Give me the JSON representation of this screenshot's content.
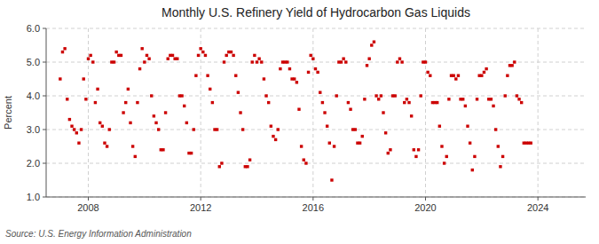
{
  "chart_data": {
    "type": "scatter",
    "title": "Monthly U.S. Refinery Yield of Hydrocarbon Gas Liquids",
    "y_label": "Percent",
    "annotations": [
      "Source: U.S. Energy Information Administration"
    ],
    "color": "#cc0000",
    "marker": "square",
    "grid": true,
    "xlim": [
      2006.5,
      2025.7
    ],
    "ylim": [
      1.0,
      6.0
    ],
    "xticks": [
      2008,
      2012,
      2016,
      2020,
      2024
    ],
    "yticks": [
      {
        "value": 1.0,
        "label": "1.0"
      },
      {
        "value": 2.0,
        "label": "2.0"
      },
      {
        "value": 3.0,
        "label": "3.0"
      },
      {
        "value": 4.0,
        "label": "4.0"
      },
      {
        "value": 5.0,
        "label": "5.0"
      },
      {
        "value": 6.0,
        "label": "6.0"
      }
    ],
    "x": [
      2007,
      2007.0833,
      2007.1667,
      2007.25,
      2007.3333,
      2007.4167,
      2007.5,
      2007.5833,
      2007.6667,
      2007.75,
      2007.8333,
      2007.9167,
      2008,
      2008.0833,
      2008.1667,
      2008.25,
      2008.3333,
      2008.4167,
      2008.5,
      2008.5833,
      2008.6667,
      2008.75,
      2008.8333,
      2008.9167,
      2009,
      2009.0833,
      2009.1667,
      2009.25,
      2009.3333,
      2009.4167,
      2009.5,
      2009.5833,
      2009.6667,
      2009.75,
      2009.8333,
      2009.9167,
      2010,
      2010.0833,
      2010.1667,
      2010.25,
      2010.3333,
      2010.4167,
      2010.5,
      2010.5833,
      2010.6667,
      2010.75,
      2010.8333,
      2010.9167,
      2011,
      2011.0833,
      2011.1667,
      2011.25,
      2011.3333,
      2011.4167,
      2011.5,
      2011.5833,
      2011.6667,
      2011.75,
      2011.8333,
      2011.9167,
      2012,
      2012.0833,
      2012.1667,
      2012.25,
      2012.3333,
      2012.4167,
      2012.5,
      2012.5833,
      2012.6667,
      2012.75,
      2012.8333,
      2012.9167,
      2013,
      2013.0833,
      2013.1667,
      2013.25,
      2013.3333,
      2013.4167,
      2013.5,
      2013.5833,
      2013.6667,
      2013.75,
      2013.8333,
      2013.9167,
      2014,
      2014.0833,
      2014.1667,
      2014.25,
      2014.3333,
      2014.4167,
      2014.5,
      2014.5833,
      2014.6667,
      2014.75,
      2014.8333,
      2014.9167,
      2015,
      2015.0833,
      2015.1667,
      2015.25,
      2015.3333,
      2015.4167,
      2015.5,
      2015.5833,
      2015.6667,
      2015.75,
      2015.8333,
      2015.9167,
      2016,
      2016.0833,
      2016.1667,
      2016.25,
      2016.3333,
      2016.4167,
      2016.5,
      2016.5833,
      2016.6667,
      2016.75,
      2016.8333,
      2016.9167,
      2017,
      2017.0833,
      2017.1667,
      2017.25,
      2017.3333,
      2017.4167,
      2017.5,
      2017.5833,
      2017.6667,
      2017.75,
      2017.8333,
      2017.9167,
      2018,
      2018.0833,
      2018.1667,
      2018.25,
      2018.3333,
      2018.4167,
      2018.5,
      2018.5833,
      2018.6667,
      2018.75,
      2018.8333,
      2018.9167,
      2019,
      2019.0833,
      2019.1667,
      2019.25,
      2019.3333,
      2019.4167,
      2019.5,
      2019.5833,
      2019.6667,
      2019.75,
      2019.8333,
      2019.9167,
      2020,
      2020.0833,
      2020.1667,
      2020.25,
      2020.3333,
      2020.4167,
      2020.5,
      2020.5833,
      2020.6667,
      2020.75,
      2020.8333,
      2020.9167,
      2021,
      2021.0833,
      2021.1667,
      2021.25,
      2021.3333,
      2021.4167,
      2021.5,
      2021.5833,
      2021.6667,
      2021.75,
      2021.8333,
      2021.9167,
      2022,
      2022.0833,
      2022.1667,
      2022.25,
      2022.3333,
      2022.4167,
      2022.5,
      2022.5833,
      2022.6667,
      2022.75,
      2022.8333,
      2022.9167,
      2023,
      2023.0833,
      2023.1667,
      2023.25,
      2023.3333,
      2023.4167,
      2023.5,
      2023.5833,
      2023.6667,
      2023.75
    ],
    "values": [
      4.5,
      5.3,
      5.4,
      3.9,
      3.3,
      3.1,
      3.0,
      2.9,
      2.6,
      3.0,
      4.5,
      3.9,
      5.1,
      5.2,
      5.0,
      3.8,
      4.2,
      3.2,
      3.1,
      2.6,
      2.5,
      3.0,
      5.0,
      5.0,
      5.3,
      5.2,
      5.2,
      3.5,
      3.8,
      4.2,
      3.2,
      2.5,
      2.2,
      3.8,
      4.8,
      5.4,
      5.0,
      5.2,
      5.1,
      4.0,
      3.4,
      3.2,
      3.0,
      2.4,
      2.4,
      3.5,
      5.1,
      5.2,
      5.2,
      5.1,
      5.1,
      4.0,
      4.0,
      3.7,
      3.2,
      2.3,
      2.3,
      3.0,
      4.6,
      5.2,
      5.4,
      5.3,
      5.2,
      4.6,
      4.2,
      3.8,
      3.0,
      3.0,
      1.9,
      2.0,
      5.0,
      5.2,
      5.3,
      5.3,
      5.2,
      4.6,
      4.1,
      3.5,
      3.0,
      1.9,
      1.9,
      2.1,
      5.0,
      5.2,
      5.0,
      5.1,
      5.0,
      4.5,
      4.0,
      3.8,
      3.1,
      2.8,
      2.7,
      3.0,
      4.8,
      5.0,
      5.0,
      5.0,
      4.8,
      4.5,
      4.5,
      4.4,
      3.6,
      2.5,
      2.1,
      2.0,
      4.7,
      5.2,
      5.1,
      4.8,
      4.7,
      4.1,
      3.8,
      3.5,
      3.1,
      2.6,
      1.5,
      2.5,
      4.0,
      5.0,
      5.0,
      5.1,
      5.0,
      3.8,
      3.6,
      3.0,
      3.0,
      2.6,
      2.6,
      2.8,
      3.9,
      4.9,
      5.1,
      5.5,
      5.6,
      4.0,
      3.9,
      4.0,
      3.5,
      2.9,
      2.3,
      2.4,
      4.0,
      4.0,
      5.0,
      5.1,
      5.0,
      3.8,
      3.9,
      3.8,
      3.4,
      2.4,
      2.2,
      2.4,
      4.0,
      5.0,
      5.0,
      4.7,
      4.6,
      3.8,
      3.8,
      3.8,
      3.1,
      2.5,
      2.0,
      2.2,
      3.9,
      4.6,
      4.6,
      4.5,
      4.6,
      3.9,
      3.9,
      3.7,
      3.1,
      2.6,
      1.8,
      2.2,
      3.9,
      4.6,
      4.6,
      4.7,
      4.8,
      3.9,
      3.9,
      3.7,
      3.0,
      2.5,
      1.9,
      2.2,
      4.0,
      4.6,
      4.9,
      4.9,
      5.0,
      4.0,
      3.9,
      3.8,
      2.6,
      2.6,
      2.6,
      2.6
    ]
  }
}
